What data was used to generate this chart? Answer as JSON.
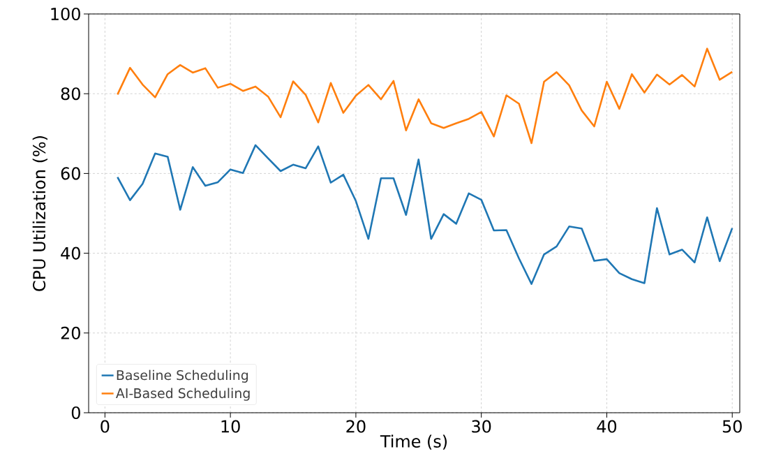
{
  "chart_data": {
    "type": "line",
    "xlabel": "Time (s)",
    "ylabel": "CPU Utilization (%)",
    "x": [
      1,
      2,
      3,
      4,
      5,
      6,
      7,
      8,
      9,
      10,
      11,
      12,
      13,
      14,
      15,
      16,
      17,
      18,
      19,
      20,
      21,
      22,
      23,
      24,
      25,
      26,
      27,
      28,
      29,
      30,
      31,
      32,
      33,
      34,
      35,
      36,
      37,
      38,
      39,
      40,
      41,
      42,
      43,
      44,
      45,
      46,
      47,
      48,
      49,
      50
    ],
    "series": [
      {
        "name": "Baseline Scheduling",
        "color": "#1f77b4",
        "values": [
          59.1,
          53.3,
          57.4,
          65.0,
          64.2,
          50.9,
          61.6,
          56.9,
          57.8,
          61.0,
          60.1,
          67.1,
          63.8,
          60.6,
          62.2,
          61.3,
          66.8,
          57.7,
          59.7,
          53.1,
          43.6,
          58.8,
          58.8,
          49.6,
          63.5,
          43.6,
          49.8,
          47.4,
          55.0,
          53.4,
          45.7,
          45.8,
          38.7,
          32.3,
          39.7,
          41.7,
          46.7,
          46.2,
          38.1,
          38.5,
          35.0,
          33.5,
          32.5,
          51.3,
          39.7,
          40.9,
          37.7,
          49.0,
          38.0,
          46.3
        ]
      },
      {
        "name": "AI-Based Scheduling",
        "color": "#ff7f0e",
        "values": [
          79.8,
          86.5,
          82.3,
          79.1,
          84.9,
          87.2,
          85.3,
          86.4,
          81.5,
          82.5,
          80.7,
          81.8,
          79.3,
          74.1,
          83.1,
          79.7,
          72.8,
          82.7,
          75.2,
          79.5,
          82.2,
          78.6,
          83.2,
          70.8,
          78.6,
          72.6,
          71.4,
          72.6,
          73.7,
          75.4,
          69.3,
          79.6,
          77.5,
          67.6,
          83.0,
          85.4,
          82.1,
          75.8,
          71.8,
          83.0,
          76.2,
          84.9,
          80.3,
          84.8,
          82.3,
          84.7,
          81.8,
          91.3,
          83.5,
          85.5
        ]
      }
    ],
    "xlim": [
      -1.3,
      50.6
    ],
    "ylim": [
      0,
      100
    ],
    "xticks": [
      0,
      10,
      20,
      30,
      40,
      50
    ],
    "yticks": [
      0,
      20,
      40,
      60,
      80,
      100
    ],
    "grid": true,
    "legend": "bottom left",
    "marker": "none",
    "line_style": "solid"
  }
}
